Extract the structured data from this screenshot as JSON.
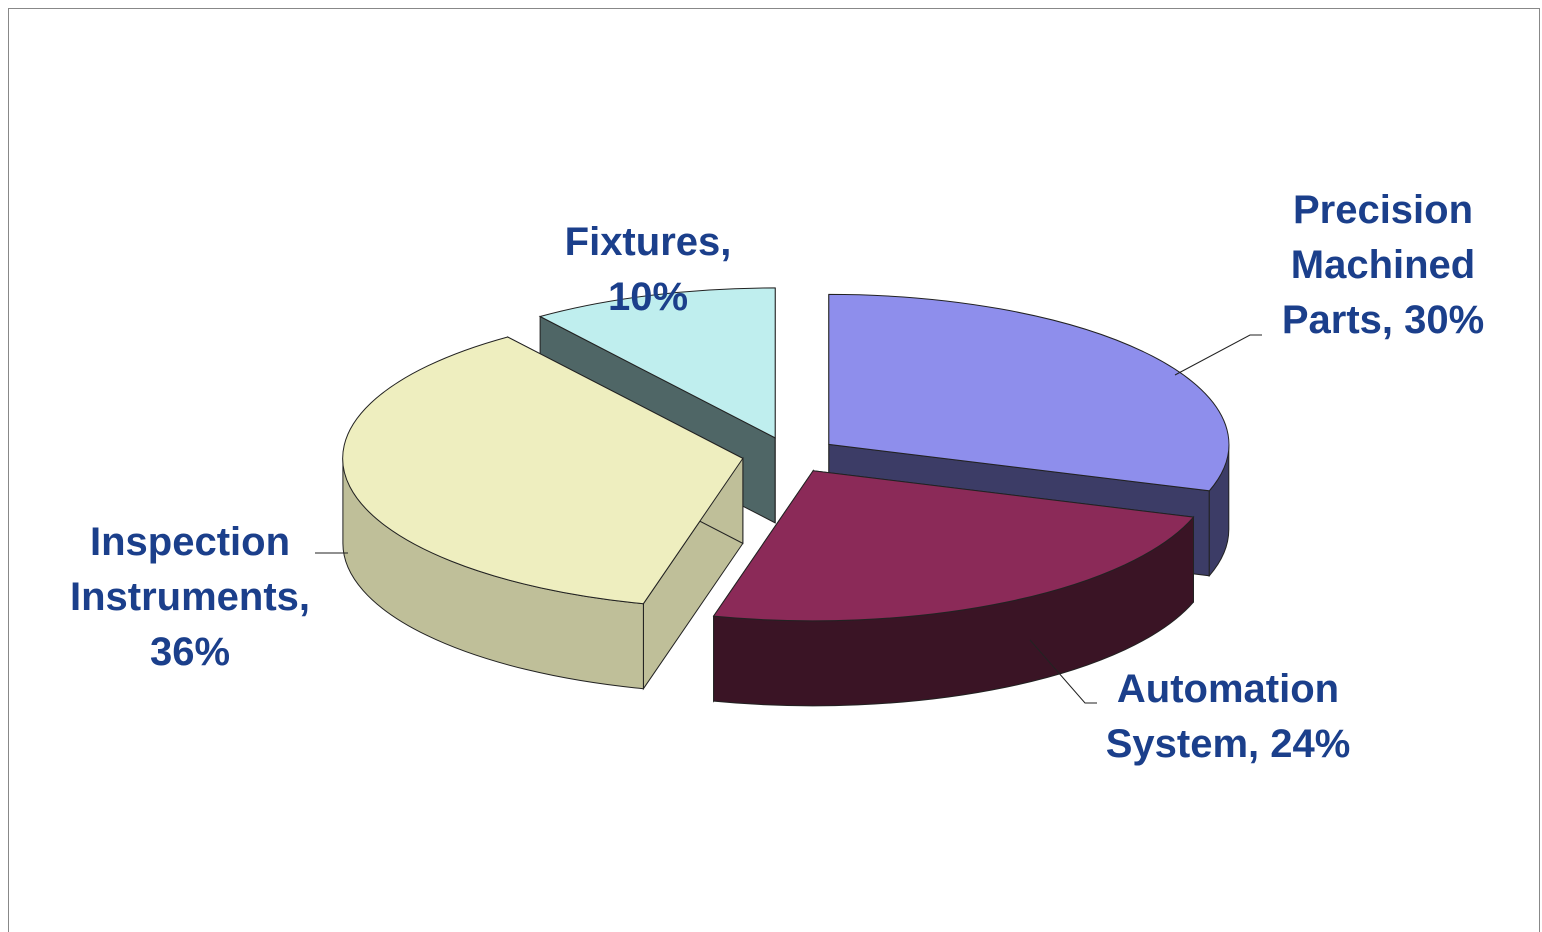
{
  "chart_data": {
    "type": "pie",
    "categories": [
      "Precision Machined Parts",
      "Automation System",
      "Inspection Instruments",
      "Fixtures"
    ],
    "values": [
      30,
      24,
      36,
      10
    ],
    "value_labels": [
      "Precision Machined Parts, 30%",
      "Automation System, 24%",
      "Inspection Instruments, 36%",
      "Fixtures, 10%"
    ],
    "colors": [
      "#8e8eec",
      "#8b2a58",
      "#eeeebf",
      "#bfeeee"
    ],
    "side_colors": [
      "#3c3c66",
      "#3a1425",
      "#bfbf99",
      "#4f6666"
    ]
  }
}
